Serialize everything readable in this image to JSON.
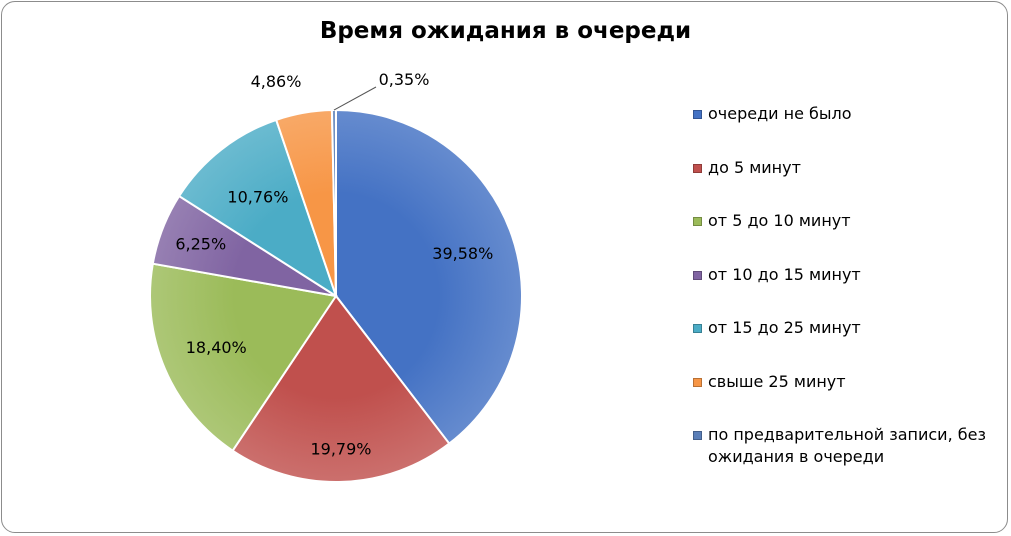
{
  "chart_data": {
    "type": "pie",
    "title": "Время ожидания в очереди",
    "legend_position": "right",
    "slices": [
      {
        "name": "очереди не было",
        "value": 39.58,
        "label": "39,58%",
        "color": "#4472c4"
      },
      {
        "name": "до 5 минут",
        "value": 19.79,
        "label": "19,79%",
        "color": "#c0504d"
      },
      {
        "name": "от 5 до 10 минут",
        "value": 18.4,
        "label": "18,40%",
        "color": "#9bbb59"
      },
      {
        "name": "от 10 до 15 минут",
        "value": 6.25,
        "label": "6,25%",
        "color": "#8064a2"
      },
      {
        "name": "от 15 до 25 минут",
        "value": 10.76,
        "label": "10,76%",
        "color": "#4bacc6"
      },
      {
        "name": "свыше 25 минут",
        "value": 4.86,
        "label": "4,86%",
        "color": "#f79646"
      },
      {
        "name": "по предварительной записи, без ожидания в очереди",
        "value": 0.35,
        "label": "0,35%",
        "color": "#5b7fb8"
      }
    ]
  }
}
